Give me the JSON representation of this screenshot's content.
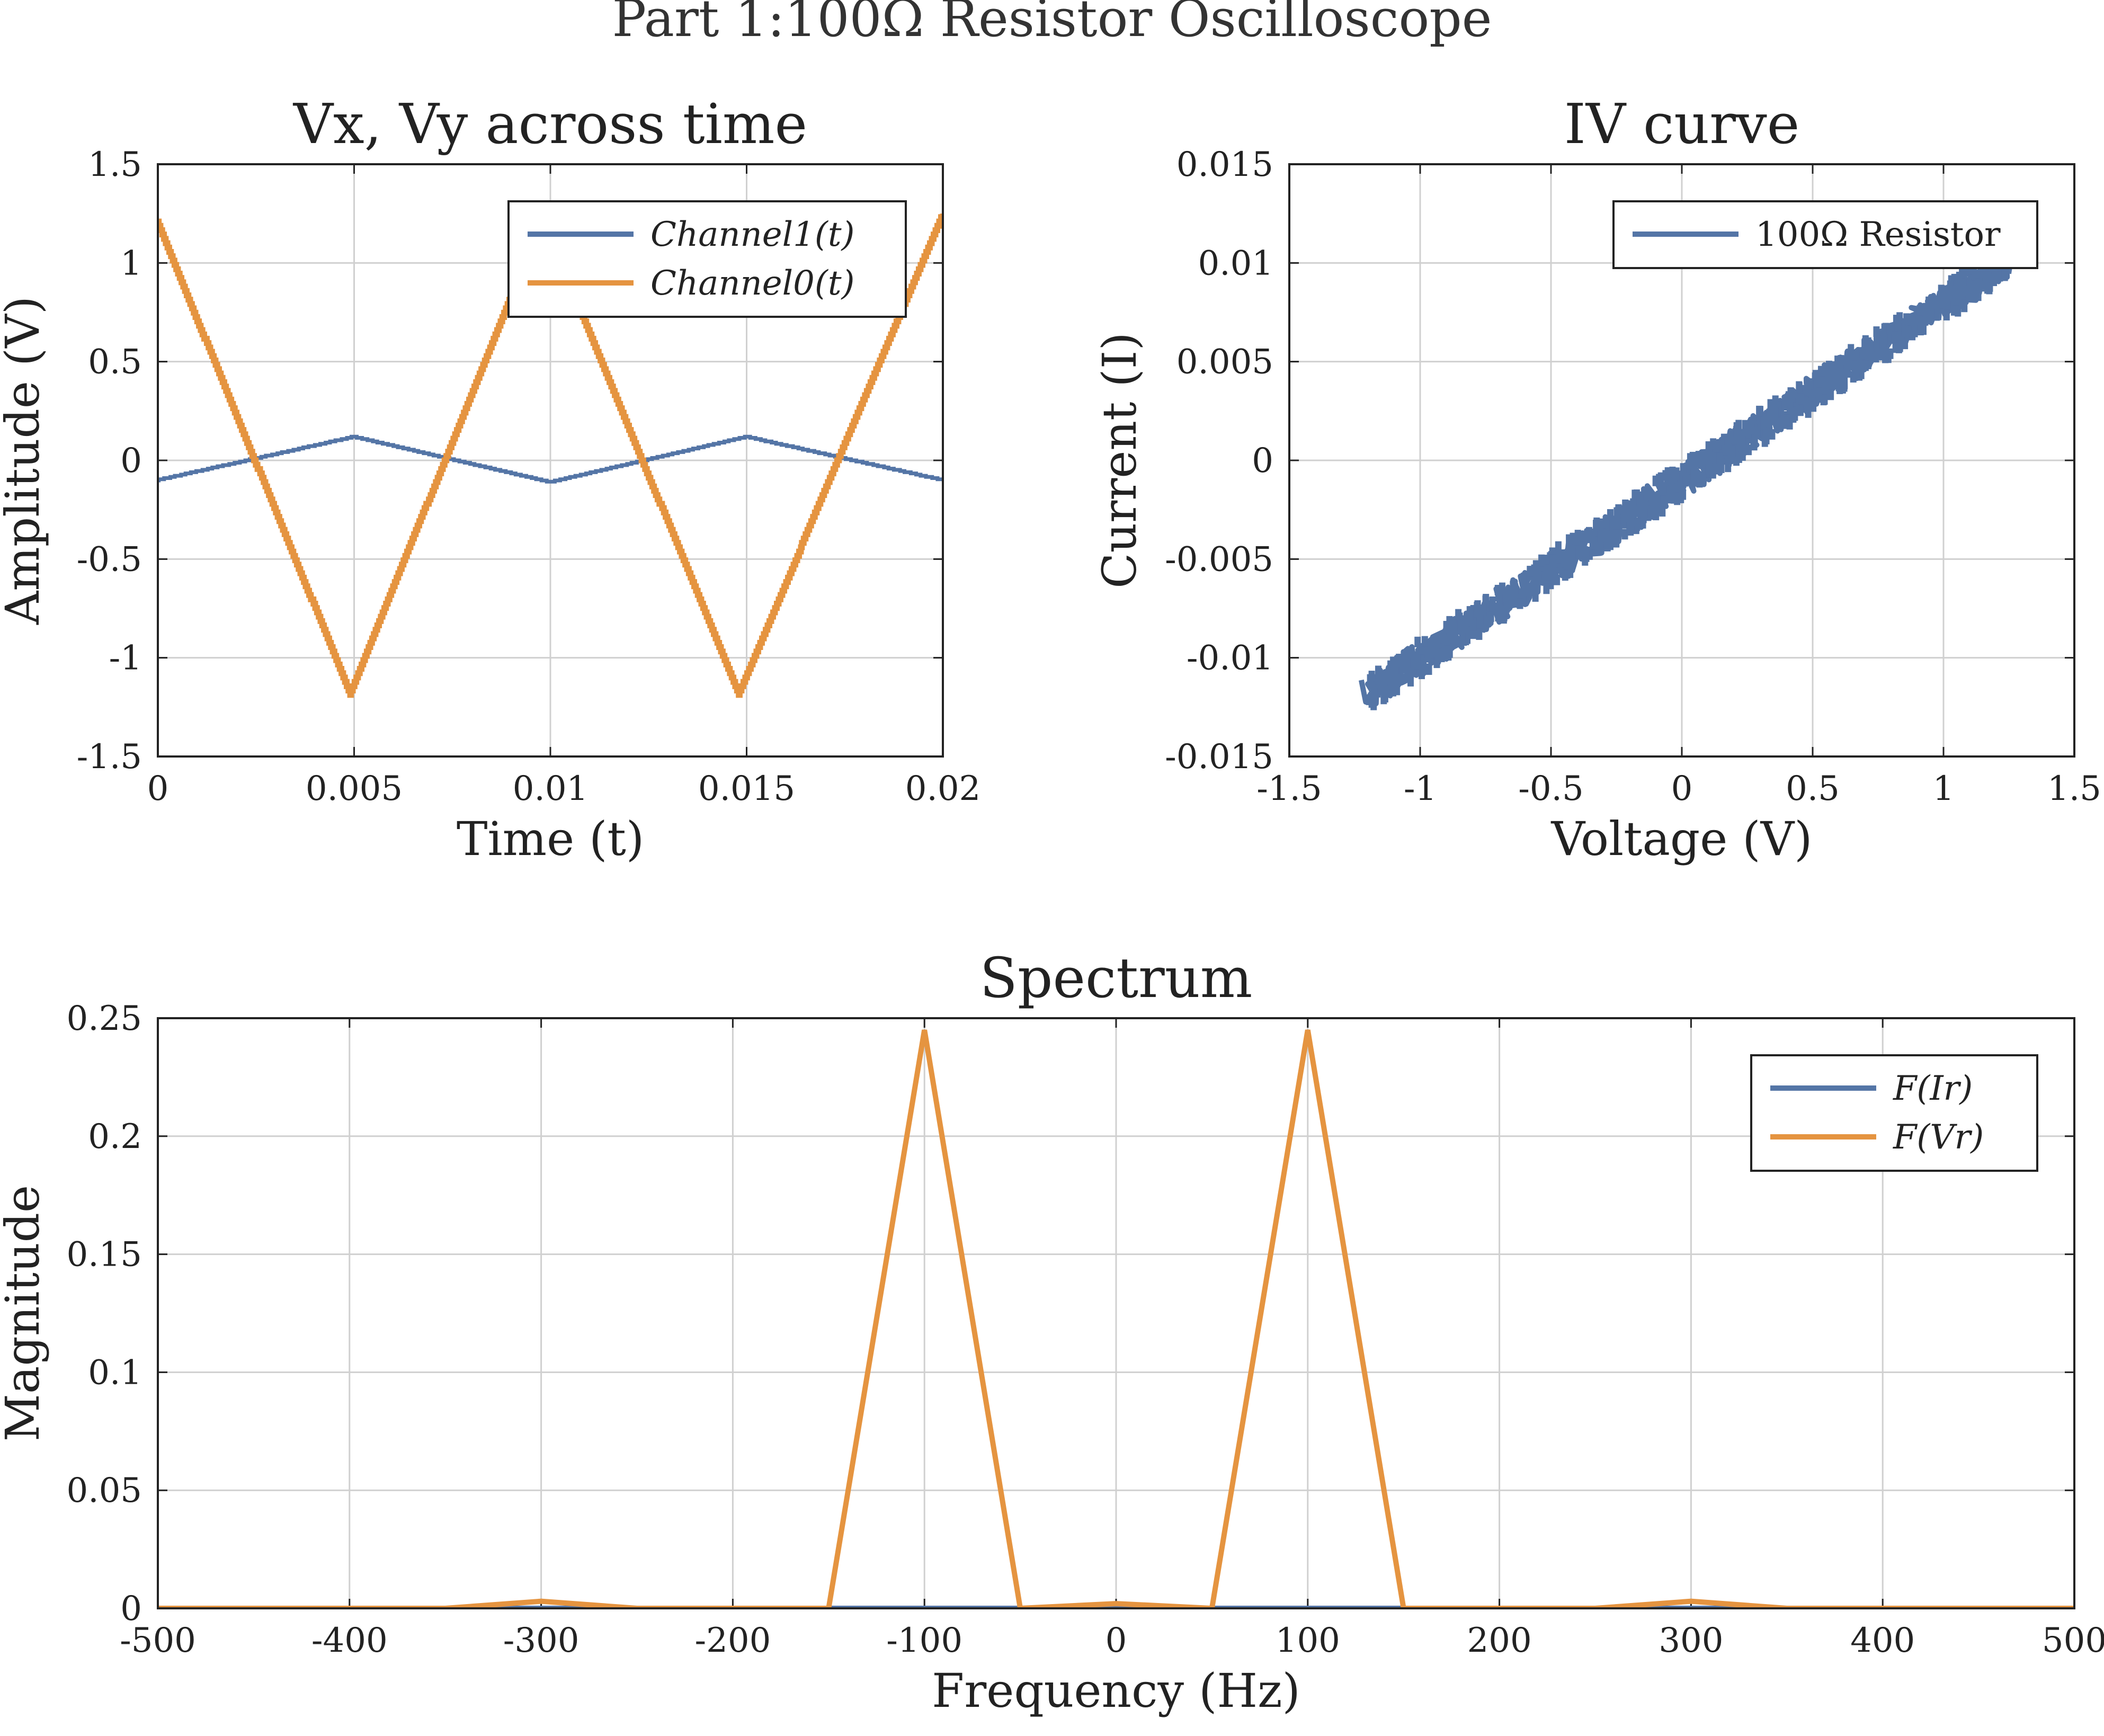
{
  "figure": {
    "suptitle": "Part 1:100Ω Resistor Oscilloscope"
  },
  "colors": {
    "blue": "#5475a6",
    "orange": "#e59440"
  },
  "chart_data": [
    {
      "type": "line",
      "title": "Vx, Vy across time",
      "xlabel": "Time (t)",
      "ylabel": "Amplitude (V)",
      "xlim": [
        0,
        0.02
      ],
      "ylim": [
        -1.5,
        1.5
      ],
      "xticks": [
        0,
        0.005,
        0.01,
        0.015,
        0.02
      ],
      "xtick_labels": [
        "0",
        "0.005",
        "0.01",
        "0.015",
        "0.02"
      ],
      "yticks": [
        -1.5,
        -1,
        -0.5,
        0,
        0.5,
        1,
        1.5
      ],
      "ytick_labels": [
        "-1.5",
        "-1",
        "-0.5",
        "0",
        "0.5",
        "1",
        "1.5"
      ],
      "grid": true,
      "legend": "top-right",
      "series": [
        {
          "name": "Channel1(t)",
          "color": "#5475a6",
          "x": [
            0,
            0.005,
            0.01,
            0.015,
            0.02
          ],
          "y": [
            -0.1,
            0.12,
            -0.11,
            0.12,
            -0.1
          ]
        },
        {
          "name": "Channel0(t)",
          "color": "#e59440",
          "x": [
            0,
            0.0049,
            0.0098,
            0.0148,
            0.02
          ],
          "y": [
            1.2,
            -1.18,
            1.22,
            -1.18,
            1.25
          ]
        }
      ]
    },
    {
      "type": "line",
      "title": "IV curve",
      "xlabel": "Voltage (V)",
      "ylabel": "Current (I)",
      "xlim": [
        -1.5,
        1.5
      ],
      "ylim": [
        -0.015,
        0.015
      ],
      "xticks": [
        -1.5,
        -1,
        -0.5,
        0,
        0.5,
        1,
        1.5
      ],
      "xtick_labels": [
        "-1.5",
        "-1",
        "-0.5",
        "0",
        "0.5",
        "1",
        "1.5"
      ],
      "yticks": [
        -0.015,
        -0.01,
        -0.005,
        0,
        0.005,
        0.01,
        0.015
      ],
      "ytick_labels": [
        "-0.015",
        "-0.01",
        "-0.005",
        "0",
        "0.005",
        "0.01",
        "0.015"
      ],
      "grid": true,
      "legend": "top-right",
      "series": [
        {
          "name": "100Ω Resistor",
          "color": "#5475a6",
          "x": [
            -1.2,
            1.25
          ],
          "y": [
            -0.0118,
            0.0102
          ]
        }
      ]
    },
    {
      "type": "line",
      "title": "Spectrum",
      "xlabel": "Frequency (Hz)",
      "ylabel": "Magnitude",
      "xlim": [
        -500,
        500
      ],
      "ylim": [
        0,
        0.25
      ],
      "xticks": [
        -500,
        -400,
        -300,
        -200,
        -100,
        0,
        100,
        200,
        300,
        400,
        500
      ],
      "xtick_labels": [
        "-500",
        "-400",
        "-300",
        "-200",
        "-100",
        "0",
        "100",
        "200",
        "300",
        "400",
        "500"
      ],
      "yticks": [
        0,
        0.05,
        0.1,
        0.15,
        0.2,
        0.25
      ],
      "ytick_labels": [
        "0",
        "0.05",
        "0.1",
        "0.15",
        "0.2",
        "0.25"
      ],
      "grid": true,
      "legend": "top-right",
      "series": [
        {
          "name": "F(Ir)",
          "color": "#5475a6",
          "x": [
            -500,
            -450,
            -400,
            -350,
            -300,
            -250,
            -200,
            -150,
            -100,
            -50,
            0,
            50,
            100,
            150,
            200,
            250,
            300,
            350,
            400,
            450,
            500
          ],
          "y": [
            0,
            0,
            0,
            0,
            0,
            0,
            0,
            0,
            0,
            0,
            0,
            0,
            0,
            0,
            0,
            0,
            0,
            0,
            0,
            0,
            0
          ]
        },
        {
          "name": "F(Vr)",
          "color": "#e59440",
          "x": [
            -500,
            -450,
            -400,
            -350,
            -300,
            -250,
            -200,
            -150,
            -100,
            -50,
            0,
            50,
            100,
            150,
            200,
            250,
            300,
            350,
            400,
            450,
            500
          ],
          "y": [
            0,
            0,
            0,
            0,
            0.003,
            0,
            0,
            0,
            0.245,
            0,
            0.002,
            0,
            0.245,
            0,
            0,
            0,
            0.003,
            0,
            0,
            0,
            0
          ]
        }
      ]
    }
  ]
}
